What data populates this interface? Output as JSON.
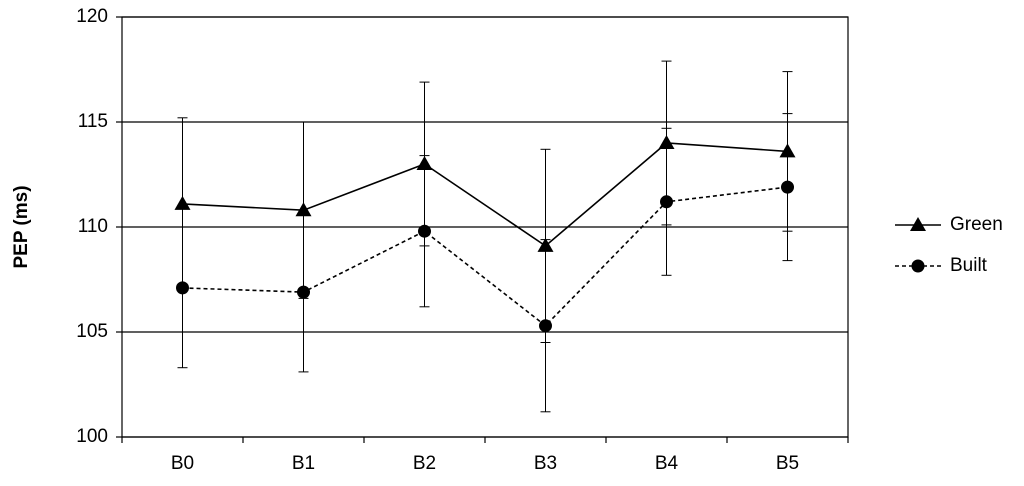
{
  "chart_data": {
    "type": "line",
    "y_label": "PEP (ms)",
    "categories": [
      "B0",
      "B1",
      "B2",
      "B3",
      "B4",
      "B5"
    ],
    "ylim": [
      100,
      120
    ],
    "yticks": [
      100,
      105,
      110,
      115,
      120
    ],
    "grid": true,
    "legend": "right",
    "series": [
      {
        "name": "Green",
        "color": "#000000",
        "linestyle": "solid",
        "marker": "triangle",
        "values": [
          111.1,
          110.8,
          113.0,
          109.1,
          114.0,
          113.6
        ],
        "errors": [
          4.1,
          4.2,
          3.9,
          4.6,
          3.9,
          3.8
        ]
      },
      {
        "name": "Built",
        "color": "#000000",
        "linestyle": "dashed",
        "marker": "circle",
        "values": [
          107.1,
          106.9,
          109.8,
          105.3,
          111.2,
          111.9
        ],
        "errors": [
          3.8,
          3.8,
          3.6,
          4.1,
          3.5,
          3.5
        ]
      }
    ]
  }
}
